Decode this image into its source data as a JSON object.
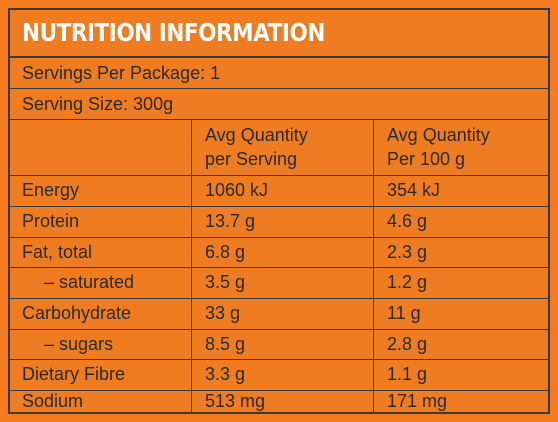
{
  "title": "NUTRITION INFORMATION",
  "servings_per_package": "Servings Per Package: 1",
  "serving_size": "Serving Size: 300g",
  "columns": {
    "per_serving_line1": "Avg Quantity",
    "per_serving_line2": "per Serving",
    "per_100g_line1": "Avg Quantity",
    "per_100g_line2": "Per 100 g"
  },
  "rows": [
    {
      "label": "Energy",
      "per_serving": "1060 kJ",
      "per_100g": "354 kJ"
    },
    {
      "label": "Protein",
      "per_serving": "13.7 g",
      "per_100g": "4.6 g"
    },
    {
      "label": "Fat, total",
      "per_serving": "6.8 g",
      "per_100g": "2.3 g"
    },
    {
      "label": "– saturated",
      "per_serving": "3.5 g",
      "per_100g": "1.2 g"
    },
    {
      "label": "Carbohydrate",
      "per_serving": "33 g",
      "per_100g": "11 g"
    },
    {
      "label": "– sugars",
      "per_serving": "8.5 g",
      "per_100g": "2.8 g"
    },
    {
      "label": "Dietary Fibre",
      "per_serving": "3.3 g",
      "per_100g": "1.1 g"
    },
    {
      "label": "Sodium",
      "per_serving": "513 mg",
      "per_100g": "171 mg"
    }
  ],
  "colors": {
    "background": "#f47b20",
    "title_text": "#ffffff",
    "border": "#3a3a3a"
  }
}
